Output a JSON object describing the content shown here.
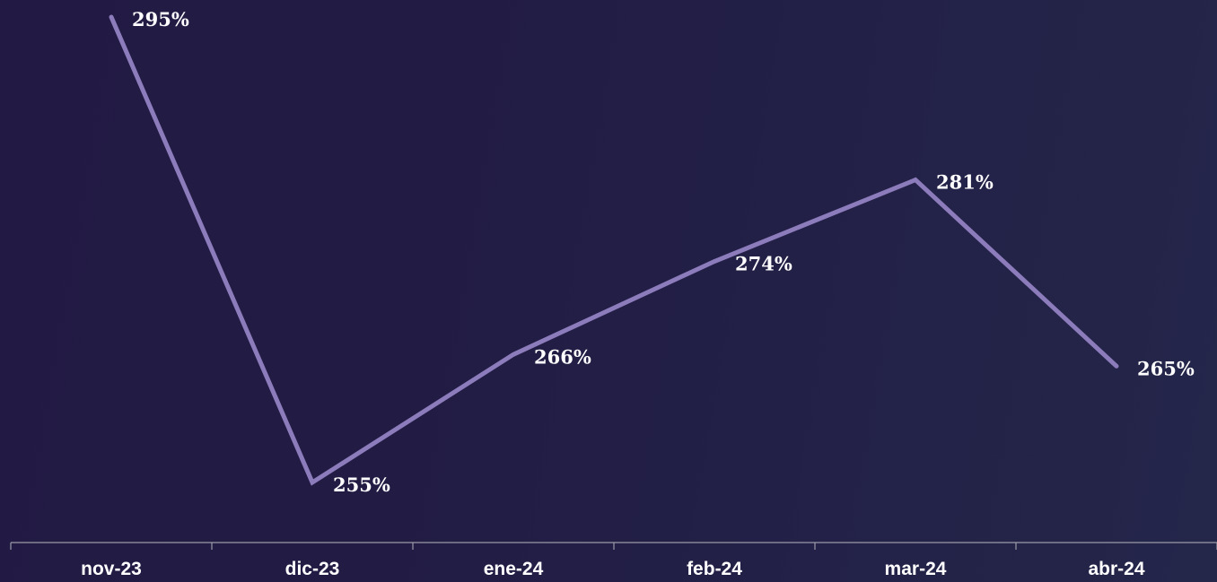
{
  "chart_data": {
    "type": "line",
    "categories": [
      "nov-23",
      "dic-23",
      "ene-24",
      "feb-24",
      "mar-24",
      "abr-24"
    ],
    "values": [
      295,
      255,
      266,
      274,
      281,
      265
    ],
    "data_labels": [
      "295%",
      "255%",
      "266%",
      "274%",
      "281%",
      "265%"
    ],
    "ylim": [
      255,
      295
    ],
    "grid": false,
    "line_color": "#8c7cbc",
    "axis_color": "#9a9aa8",
    "text_color": "#ffffff",
    "background_colors": [
      "#221a44",
      "#24264a"
    ]
  }
}
